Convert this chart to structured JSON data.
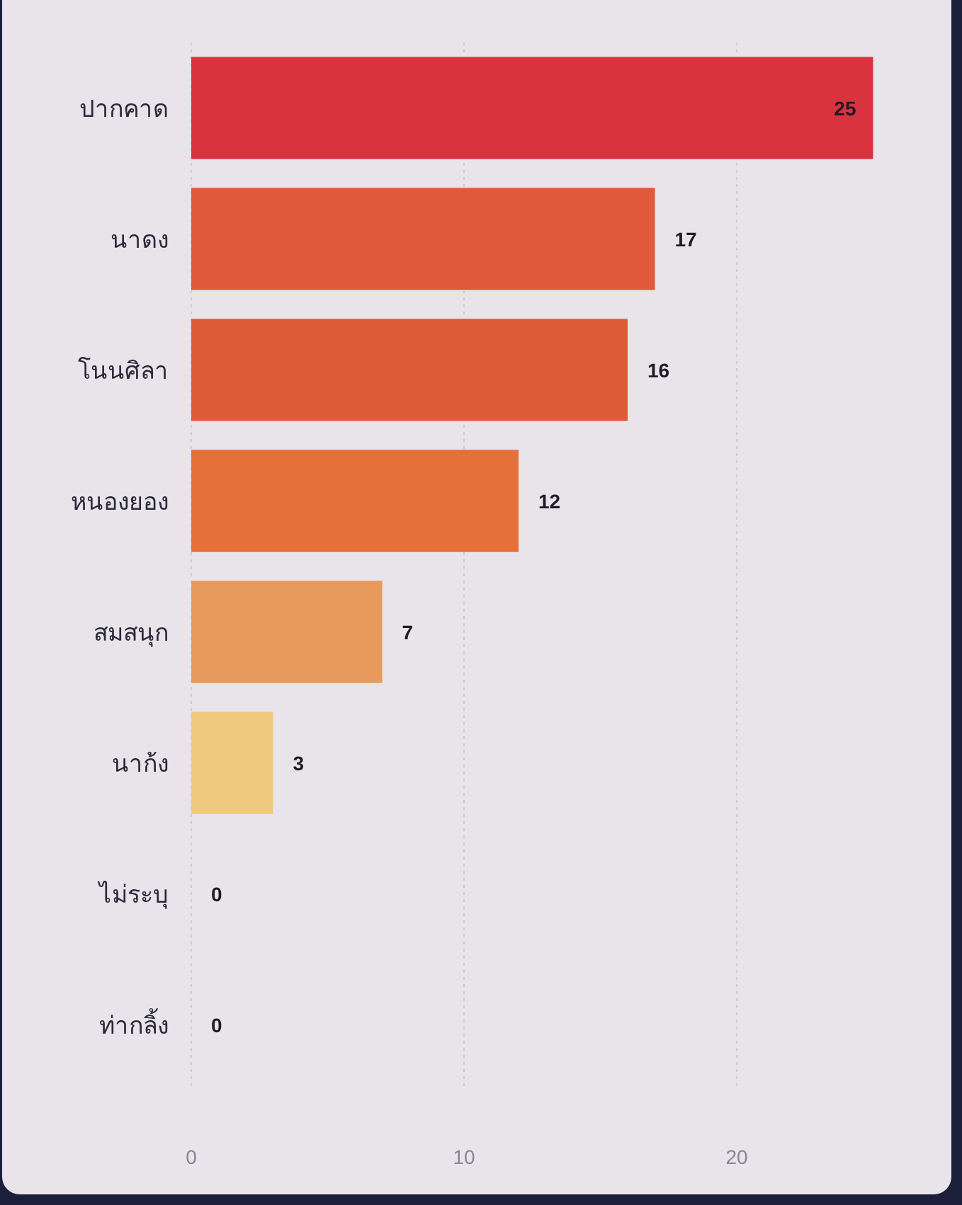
{
  "chart_data": {
    "type": "bar",
    "orientation": "horizontal",
    "categories": [
      "ปากคาด",
      "นาดง",
      "โนนศิลา",
      "หนองยอง",
      "สมสนุก",
      "นาก้ง",
      "ไม่ระบุ",
      "ท่ากลิ้ง"
    ],
    "values": [
      25,
      17,
      16,
      12,
      7,
      3,
      0,
      0
    ],
    "colors": [
      "#d9333f",
      "#e05a3a",
      "#e05c38",
      "#e5703a",
      "#e89a5e",
      "#efc97e",
      "#efc97e",
      "#efc97e"
    ],
    "xlim": [
      0,
      25
    ],
    "xticks": [
      0,
      10,
      20
    ],
    "grid": "x",
    "data_labels": true
  }
}
